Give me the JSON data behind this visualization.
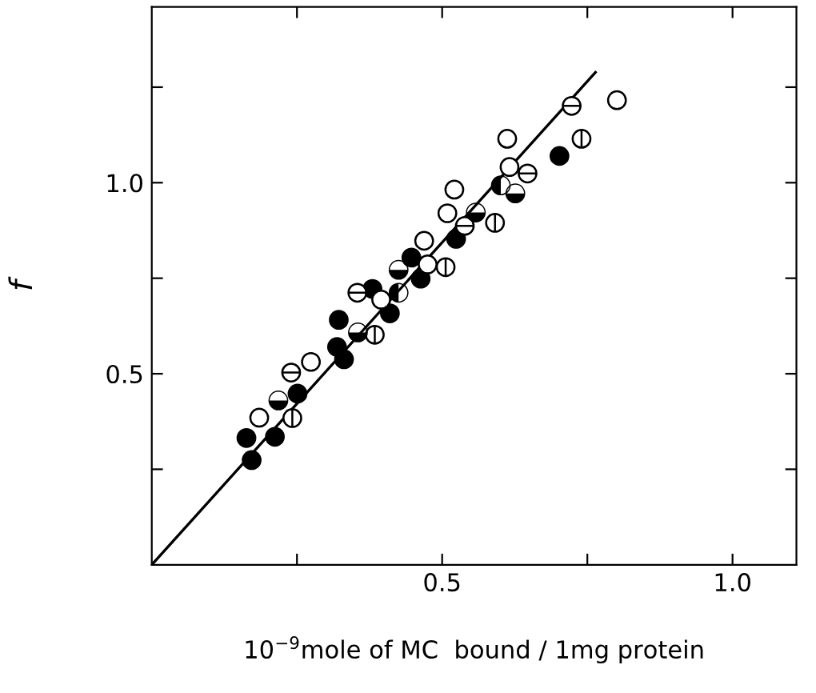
{
  "chart_data": {
    "type": "scatter",
    "xlabel": "10$^{−9}$mole of MC  bound / 1mg protein",
    "ylabel": "f",
    "xlim": [
      0,
      1.11
    ],
    "ylim": [
      0,
      1.46
    ],
    "xticks": [
      {
        "value": 0.25,
        "label": null
      },
      {
        "value": 0.5,
        "label": "0.5"
      },
      {
        "value": 0.75,
        "label": null
      },
      {
        "value": 1,
        "label": "1.0"
      }
    ],
    "yticks": [
      {
        "value": 0.25,
        "label": null
      },
      {
        "value": 0.5,
        "label": "0.5"
      },
      {
        "value": 0.75,
        "label": null
      },
      {
        "value": 1,
        "label": "1.0"
      },
      {
        "value": 1.25,
        "label": null
      }
    ],
    "grid": false,
    "legend": false,
    "marker": "circle",
    "series": [
      {
        "color": "#000000",
        "x": [
          0.172,
          0.163,
          0.212,
          0.251,
          0.322,
          0.319,
          0.331,
          0.38,
          0.41,
          0.447,
          0.463,
          0.524,
          0.702
        ],
        "values": [
          0.274,
          0.332,
          0.335,
          0.448,
          0.641,
          0.57,
          0.538,
          0.722,
          0.658,
          0.804,
          0.749,
          0.853,
          1.07
        ]
      },
      {
        "color": "#000000",
        "x": [
          0.185,
          0.274,
          0.395,
          0.469,
          0.475,
          0.509,
          0.521,
          0.612,
          0.616,
          0.801
        ],
        "values": [
          0.385,
          0.531,
          0.694,
          0.848,
          0.786,
          0.92,
          0.982,
          1.115,
          1.041,
          1.216
        ]
      },
      {
        "color": "#000000",
        "marker": "cross",
        "x": [
          0.242,
          0.384,
          0.506,
          0.591,
          0.74
        ],
        "values": [
          0.384,
          0.602,
          0.779,
          0.895,
          1.115
        ]
      },
      {
        "color": "#000000",
        "marker": "cross",
        "x": [
          0.24,
          0.354,
          0.723,
          0.647,
          0.539
        ],
        "values": [
          0.503,
          0.712,
          1.201,
          1.024,
          0.887
        ]
      },
      {
        "color": "#000000",
        "x": [
          0.218,
          0.355,
          0.425,
          0.558,
          0.626
        ],
        "values": [
          0.43,
          0.608,
          0.772,
          0.922,
          0.972
        ]
      },
      {
        "color": "#000000",
        "x": [
          0.601,
          0.425
        ],
        "values": [
          0.993,
          0.712
        ]
      },
      {
        "type": "line",
        "color": "#000000",
        "marker": "none",
        "line_style": "solid",
        "x": [
          0,
          0.764
        ],
        "values": [
          0,
          1.289
        ]
      }
    ]
  }
}
